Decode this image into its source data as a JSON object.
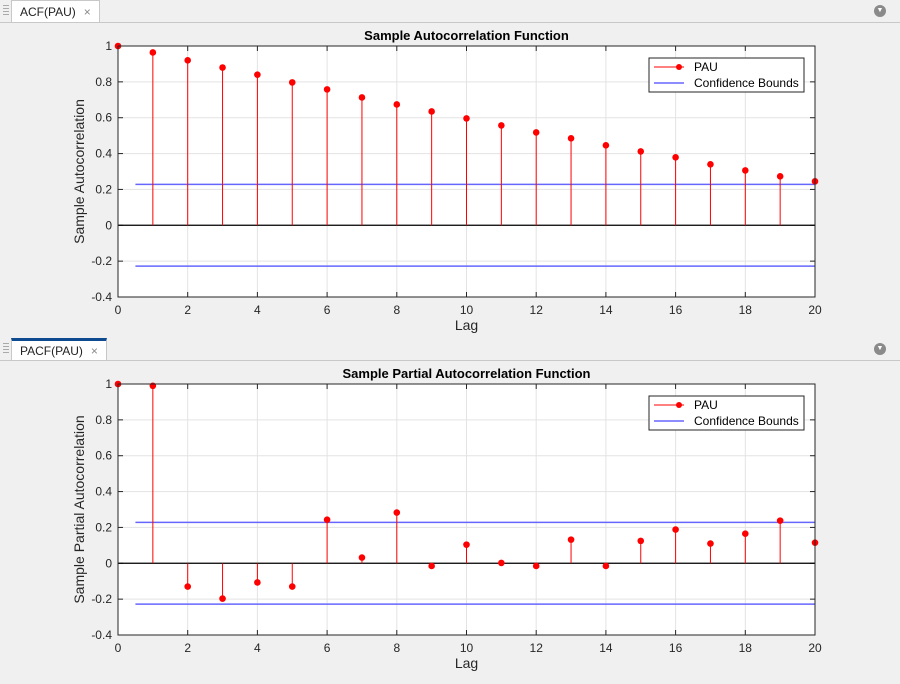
{
  "tabs": [
    {
      "label": "ACF(PAU)",
      "close": "×"
    },
    {
      "label": "PACF(PAU)",
      "close": "×"
    }
  ],
  "icons": {
    "close": "close-icon",
    "collapse": "collapse-panel-icon",
    "grip": "drag-grip-icon"
  },
  "colors": {
    "stem": "#ff0000",
    "bounds": "#6666ff",
    "zero": "#000000"
  },
  "chart_data": [
    {
      "type": "stem",
      "title": "Sample Autocorrelation Function",
      "xlabel": "Lag",
      "ylabel": "Sample Autocorrelation",
      "xlim": [
        0,
        20
      ],
      "ylim": [
        -0.4,
        1
      ],
      "xticks": [
        "0",
        "2",
        "4",
        "6",
        "8",
        "10",
        "12",
        "14",
        "16",
        "18",
        "20"
      ],
      "yticks": [
        "-0.4",
        "-0.2",
        "0",
        "0.2",
        "0.4",
        "0.6",
        "0.8",
        "1"
      ],
      "grid": true,
      "legend_position": "top-right",
      "legend": [
        "PAU",
        "Confidence Bounds"
      ],
      "x": [
        0,
        1,
        2,
        3,
        4,
        5,
        6,
        7,
        8,
        9,
        10,
        11,
        12,
        13,
        14,
        15,
        16,
        17,
        18,
        19,
        20
      ],
      "values": [
        1,
        0.964,
        0.92,
        0.88,
        0.84,
        0.797,
        0.758,
        0.713,
        0.674,
        0.635,
        0.596,
        0.557,
        0.518,
        0.485,
        0.446,
        0.412,
        0.379,
        0.34,
        0.306,
        0.273,
        0.245
      ],
      "confidence_bounds": [
        -0.228,
        0.228
      ]
    },
    {
      "type": "stem",
      "title": "Sample Partial Autocorrelation Function",
      "xlabel": "Lag",
      "ylabel": "Sample Partial Autocorrelation",
      "xlim": [
        0,
        20
      ],
      "ylim": [
        -0.4,
        1
      ],
      "xticks": [
        "0",
        "2",
        "4",
        "6",
        "8",
        "10",
        "12",
        "14",
        "16",
        "18",
        "20"
      ],
      "yticks": [
        "-0.4",
        "-0.2",
        "0",
        "0.2",
        "0.4",
        "0.6",
        "0.8",
        "1"
      ],
      "grid": true,
      "legend_position": "top-right",
      "legend": [
        "PAU",
        "Confidence Bounds"
      ],
      "x": [
        0,
        1,
        2,
        3,
        4,
        5,
        6,
        7,
        8,
        9,
        10,
        11,
        12,
        13,
        14,
        15,
        16,
        17,
        18,
        19,
        20
      ],
      "values": [
        1,
        0.99,
        -0.13,
        -0.197,
        -0.107,
        -0.13,
        0.243,
        0.032,
        0.283,
        -0.015,
        0.104,
        0.002,
        -0.015,
        0.132,
        -0.015,
        0.125,
        0.188,
        0.11,
        0.165,
        0.238,
        0.115
      ],
      "confidence_bounds": [
        -0.228,
        0.228
      ]
    }
  ]
}
